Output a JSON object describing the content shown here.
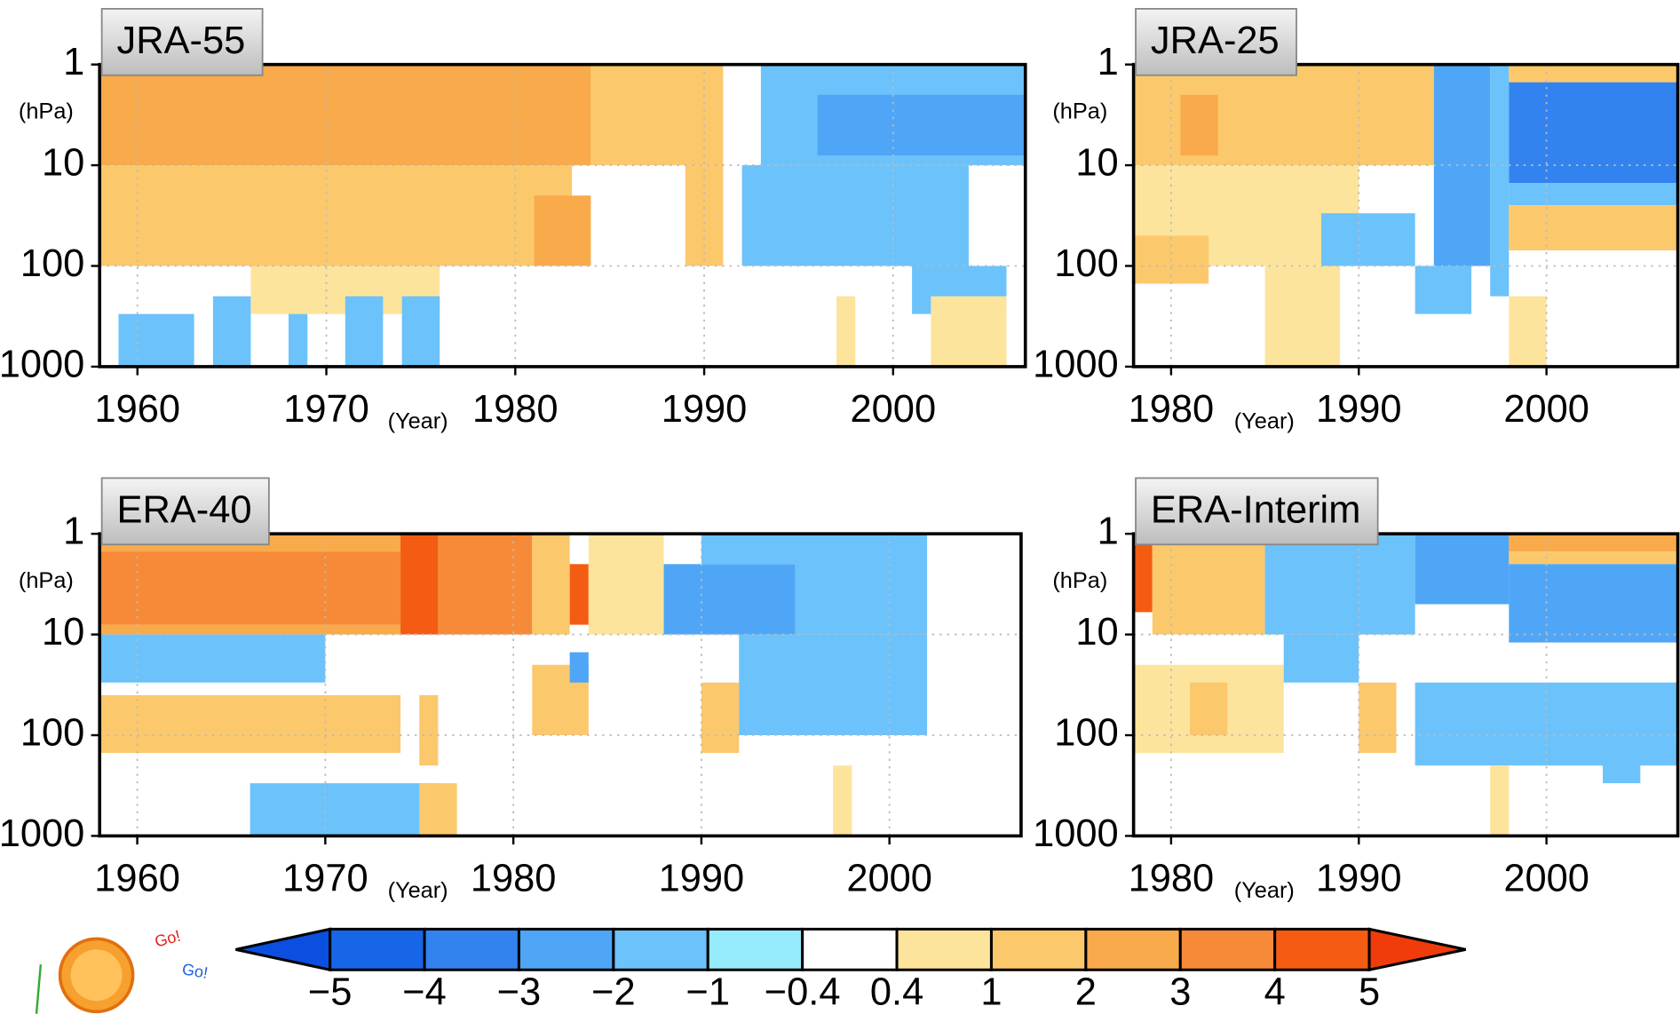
{
  "chart_data": [
    {
      "type": "heatmap",
      "title": "JRA-55",
      "xlim": [
        1958,
        2007
      ],
      "xticks": [
        1960,
        1970,
        1980,
        1990,
        2000
      ],
      "ylim": [
        1000,
        1
      ],
      "yticks": [
        1,
        10,
        100,
        1000
      ],
      "ylog": true,
      "y_label": "(hPa)",
      "x_label": "(Year)",
      "grid": true,
      "cells": [
        [
          1958,
          1984,
          1,
          10,
          2.5
        ],
        [
          1984,
          1991,
          1,
          10,
          1.5
        ],
        [
          1993,
          2007,
          1,
          10,
          -1.5
        ],
        [
          1996,
          2007,
          2,
          8,
          -2.5
        ],
        [
          1958,
          1983,
          10,
          100,
          1.5
        ],
        [
          1981,
          1984,
          20,
          100,
          2.5
        ],
        [
          1966,
          1976,
          100,
          300,
          0.7
        ],
        [
          1959,
          1963,
          300,
          1000,
          -1.5
        ],
        [
          1964,
          1966,
          200,
          1000,
          -1.5
        ],
        [
          1968,
          1969,
          300,
          1000,
          -1.5
        ],
        [
          1971,
          1973,
          200,
          1000,
          -1.5
        ],
        [
          1974,
          1976,
          200,
          1000,
          -1.5
        ],
        [
          1989,
          1991,
          10,
          100,
          1.5
        ],
        [
          1992,
          2004,
          10,
          100,
          -1.5
        ],
        [
          2001,
          2006,
          100,
          300,
          -1.5
        ],
        [
          1997,
          1998,
          200,
          1000,
          0.7
        ],
        [
          2002,
          2006,
          200,
          1000,
          0.7
        ]
      ]
    },
    {
      "type": "heatmap",
      "title": "JRA-25",
      "xlim": [
        1978,
        2007
      ],
      "xticks": [
        1980,
        1990,
        2000
      ],
      "ylim": [
        1000,
        1
      ],
      "yticks": [
        1,
        10,
        100,
        1000
      ],
      "ylog": true,
      "y_label": "(hPa)",
      "x_label": "(Year)",
      "grid": true,
      "cells": [
        [
          1978,
          1994,
          1,
          10,
          1.5
        ],
        [
          1980.5,
          1982.5,
          2,
          8,
          2.5
        ],
        [
          1978,
          1990,
          10,
          100,
          0.7
        ],
        [
          1978,
          1982,
          50,
          150,
          1.5
        ],
        [
          1988,
          1993,
          30,
          100,
          -1.5
        ],
        [
          1994,
          1997,
          1,
          100,
          -2.5
        ],
        [
          1997,
          1998,
          1,
          200,
          -1.5
        ],
        [
          1998,
          2007,
          1,
          1.5,
          1.5
        ],
        [
          1998,
          2007,
          1.5,
          15,
          -3.5
        ],
        [
          1998,
          2007,
          15,
          25,
          -1.5
        ],
        [
          1998,
          2007,
          25,
          70,
          1.5
        ],
        [
          1985,
          1989,
          100,
          1000,
          0.7
        ],
        [
          1993,
          1996,
          100,
          300,
          -1.5
        ],
        [
          1998,
          2000,
          200,
          1000,
          0.7
        ]
      ]
    },
    {
      "type": "heatmap",
      "title": "ERA-40",
      "xlim": [
        1958,
        2007
      ],
      "xticks": [
        1960,
        1970,
        1980,
        1990,
        2000
      ],
      "ylim": [
        1000,
        1
      ],
      "yticks": [
        1,
        10,
        100,
        1000
      ],
      "ylog": true,
      "y_label": "(hPa)",
      "x_label": "(Year)",
      "grid": true,
      "cells": [
        [
          1958,
          1974,
          1,
          1.5,
          2.5
        ],
        [
          1958,
          1974,
          1.5,
          8,
          3.5
        ],
        [
          1958,
          1974,
          8,
          10,
          2.5
        ],
        [
          1974,
          1976,
          1,
          10,
          4.5
        ],
        [
          1976,
          1981,
          1,
          10,
          3.5
        ],
        [
          1981,
          1983,
          1,
          10,
          1.5
        ],
        [
          1983,
          1984,
          2,
          8,
          4.5
        ],
        [
          1984,
          1988,
          1,
          10,
          0.7
        ],
        [
          1988,
          1995,
          2,
          10,
          -2.5
        ],
        [
          1995,
          2002,
          1,
          10,
          -1.5
        ],
        [
          1990,
          1996,
          1,
          2,
          -1.5
        ],
        [
          1958,
          1970,
          10,
          30,
          -1.5
        ],
        [
          1958,
          1974,
          40,
          150,
          1.5
        ],
        [
          1975,
          1976,
          40,
          200,
          1.5
        ],
        [
          1981,
          1984,
          20,
          100,
          1.5
        ],
        [
          1983,
          1984,
          15,
          30,
          -2.5
        ],
        [
          1990,
          1992,
          30,
          150,
          1.5
        ],
        [
          1992,
          2002,
          10,
          100,
          -1.5
        ],
        [
          1966,
          1976,
          300,
          1000,
          -1.5
        ],
        [
          1975,
          1977,
          300,
          1000,
          1.5
        ],
        [
          1997,
          1998,
          200,
          1000,
          0.7
        ]
      ]
    },
    {
      "type": "heatmap",
      "title": "ERA-Interim",
      "xlim": [
        1978,
        2007
      ],
      "xticks": [
        1980,
        1990,
        2000
      ],
      "ylim": [
        1000,
        1
      ],
      "yticks": [
        1,
        10,
        100,
        1000
      ],
      "ylog": true,
      "y_label": "(hPa)",
      "x_label": "(Year)",
      "grid": true,
      "cells": [
        [
          1978,
          1979,
          1,
          6,
          4.5
        ],
        [
          1979,
          1985,
          1,
          10,
          1.5
        ],
        [
          1985,
          1993,
          1,
          10,
          -1.5
        ],
        [
          1993,
          1998,
          1,
          5,
          -2.5
        ],
        [
          1998,
          2007,
          1,
          1.5,
          2.5
        ],
        [
          1998,
          2007,
          1.5,
          2,
          1.5
        ],
        [
          1998,
          2007,
          2,
          12,
          -2.5
        ],
        [
          1978,
          1986,
          20,
          150,
          0.7
        ],
        [
          1981,
          1983,
          30,
          100,
          1.5
        ],
        [
          1990,
          1992,
          30,
          150,
          1.5
        ],
        [
          1986,
          1990,
          10,
          30,
          -1.5
        ],
        [
          1993,
          2007,
          30,
          200,
          -1.5
        ],
        [
          1997,
          1998,
          200,
          1000,
          0.7
        ],
        [
          2003,
          2005,
          100,
          300,
          -1.5
        ]
      ]
    }
  ],
  "colorbar": {
    "ticks": [
      {
        "value": -5,
        "label": "−5"
      },
      {
        "value": -4,
        "label": "−4"
      },
      {
        "value": -3,
        "label": "−3"
      },
      {
        "value": -2,
        "label": "−2"
      },
      {
        "value": -1,
        "label": "−1"
      },
      {
        "value": -0.4,
        "label": "−0.4"
      },
      0.4,
      1,
      2,
      3,
      4,
      5
    ],
    "colors": [
      "#0a4fe0",
      "#1766e8",
      "#3282f0",
      "#4fa6f6",
      "#6cc2fa",
      "#96ecfc",
      "#ffffff",
      "#fde49c",
      "#fcc86c",
      "#f9aa4a",
      "#f68a38",
      "#f35c12",
      "#f03c0a"
    ],
    "extend": "both"
  },
  "mascot": {
    "texts": [
      "Go!",
      "Go!"
    ]
  }
}
